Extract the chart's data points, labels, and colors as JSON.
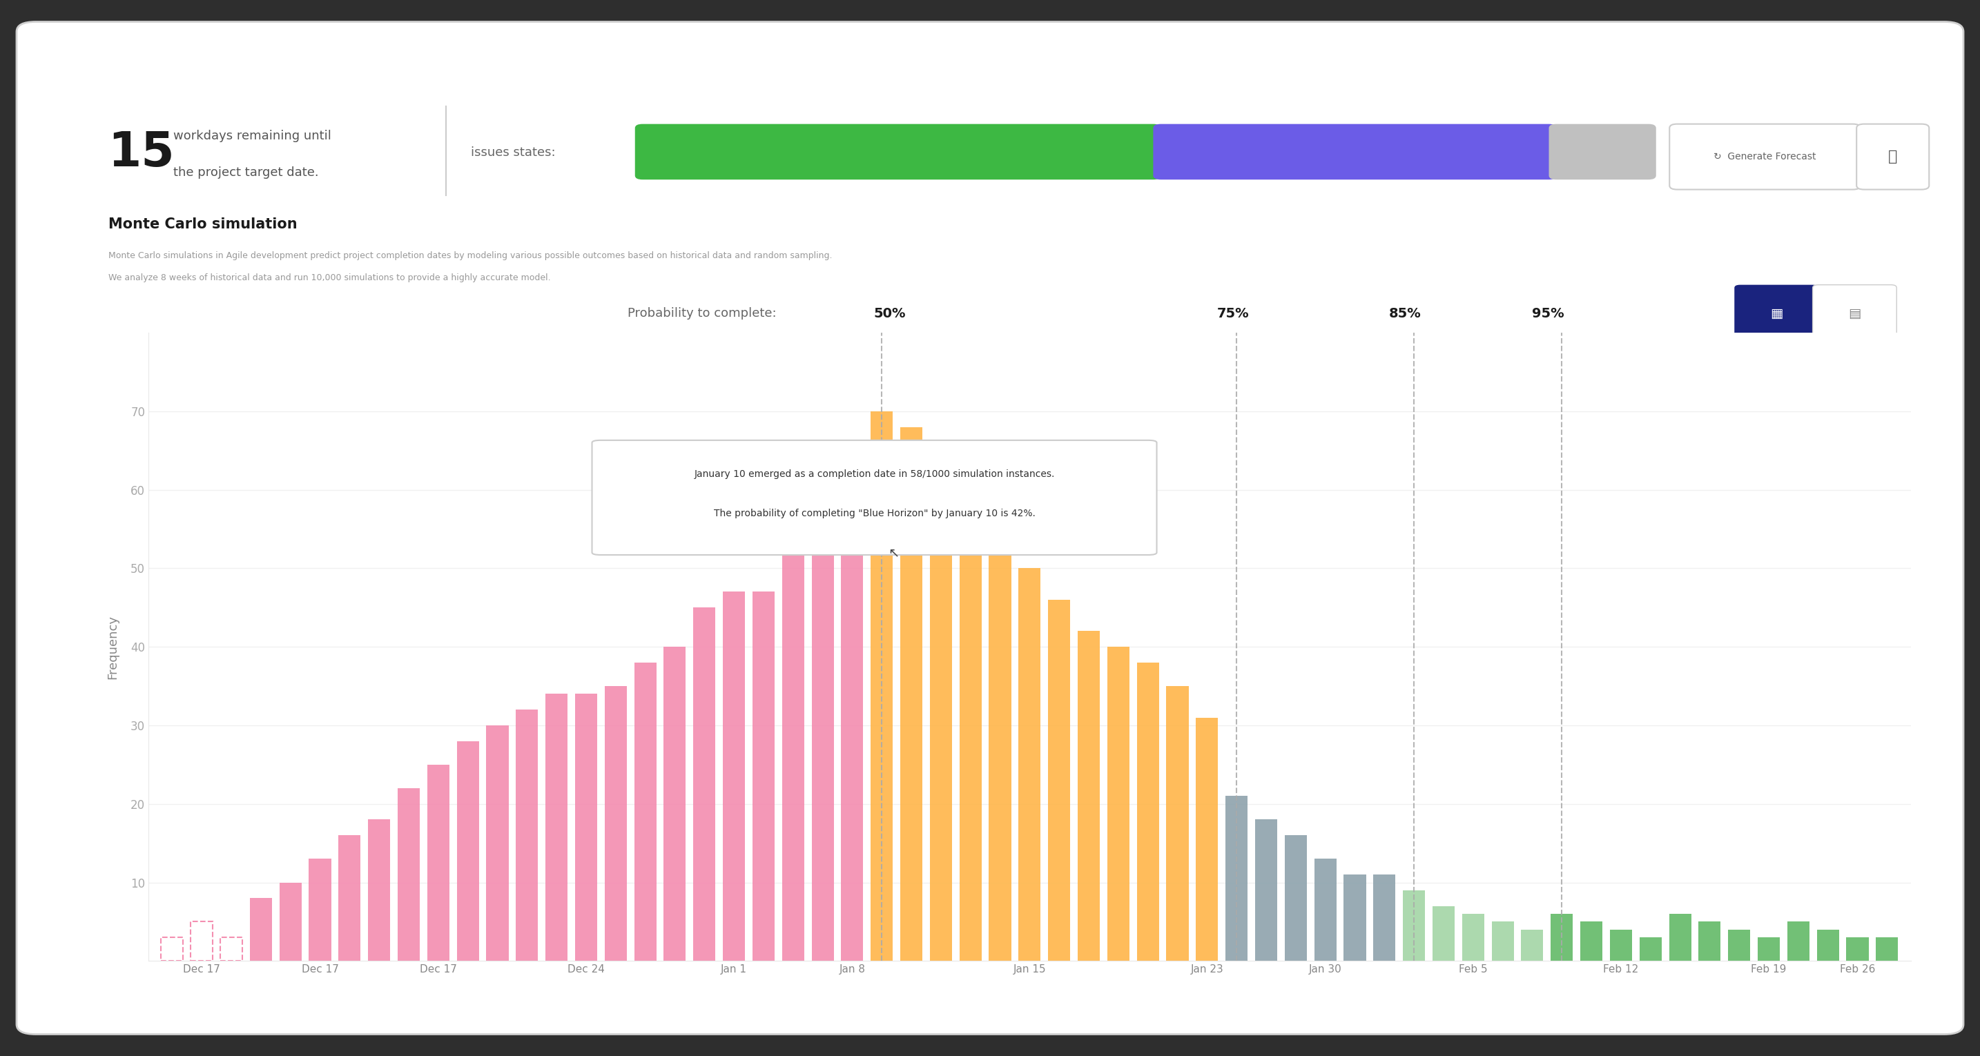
{
  "workdays_remaining": "15",
  "workdays_text_1": "workdays remaining until",
  "workdays_text_2": "the project target date.",
  "issues_states_label": "issues states:",
  "progress_bar_green_pct": 0.5,
  "progress_bar_purple_pct": 0.38,
  "progress_bar_gray_pct": 0.09,
  "title": "Monte Carlo simulation",
  "subtitle_line1": "Monte Carlo simulations in Agile development predict project completion dates by modeling various possible outcomes based on historical data and random sampling.",
  "subtitle_line2": "We analyze 8 weeks of historical data and run 10,000 simulations to provide a highly accurate model.",
  "prob_label": "Probability to complete:",
  "prob_values": [
    "50%",
    "75%",
    "85%",
    "95%"
  ],
  "ylabel": "Frequency",
  "xtick_labels": [
    "Dec 17",
    "Dec 17",
    "Dec 17",
    "Dec 24",
    "Jan 1",
    "Jan 8",
    "Jan 15",
    "Jan 23",
    "Jan 30",
    "Feb 5",
    "Feb 12",
    "Feb 19",
    "Feb 26"
  ],
  "ytick_values": [
    10,
    20,
    30,
    40,
    50,
    60,
    70
  ],
  "pink": "#F48FB1",
  "orange": "#FFB74D",
  "blue_gray": "#90A4AE",
  "light_green": "#A5D6A7",
  "green_col": "#66BB6A",
  "tooltip_text_line1": "January 10 emerged as a completion date in 58/1000 simulation instances.",
  "tooltip_text_line2": "The probability of completing \"Blue Horizon\" by January 10 is 42%.",
  "generate_btn_text": "↻  Generate Forecast",
  "dashed_line_color": "#AAAAAA",
  "bar_data_x": [
    0,
    1,
    2,
    3,
    4,
    5,
    6,
    7,
    8,
    9,
    10,
    11,
    12,
    13,
    14,
    15,
    16,
    17,
    18,
    19,
    20,
    21,
    22,
    23,
    24,
    25,
    26,
    27,
    28,
    29,
    30,
    31,
    32,
    33,
    34,
    35,
    36,
    37,
    38,
    39,
    40,
    41,
    42,
    43,
    44,
    45,
    46,
    47,
    48,
    49,
    50,
    51,
    52,
    53,
    54,
    55,
    56,
    57,
    58
  ],
  "bar_data_h": [
    3,
    5,
    3,
    8,
    10,
    13,
    16,
    18,
    22,
    25,
    28,
    30,
    32,
    34,
    34,
    35,
    38,
    40,
    45,
    47,
    47,
    53,
    58,
    65,
    70,
    68,
    65,
    60,
    56,
    50,
    46,
    42,
    40,
    38,
    35,
    31,
    21,
    18,
    16,
    13,
    11,
    11,
    9,
    7,
    6,
    5,
    4,
    6,
    5,
    4,
    3,
    6,
    5,
    4,
    3,
    5,
    4,
    3,
    3
  ],
  "thresh_50": 24,
  "thresh_75": 36,
  "thresh_85": 42,
  "thresh_95": 47,
  "xtick_positions": [
    1,
    5,
    9,
    14,
    19,
    23,
    29,
    35,
    39,
    44,
    49,
    54,
    57
  ]
}
